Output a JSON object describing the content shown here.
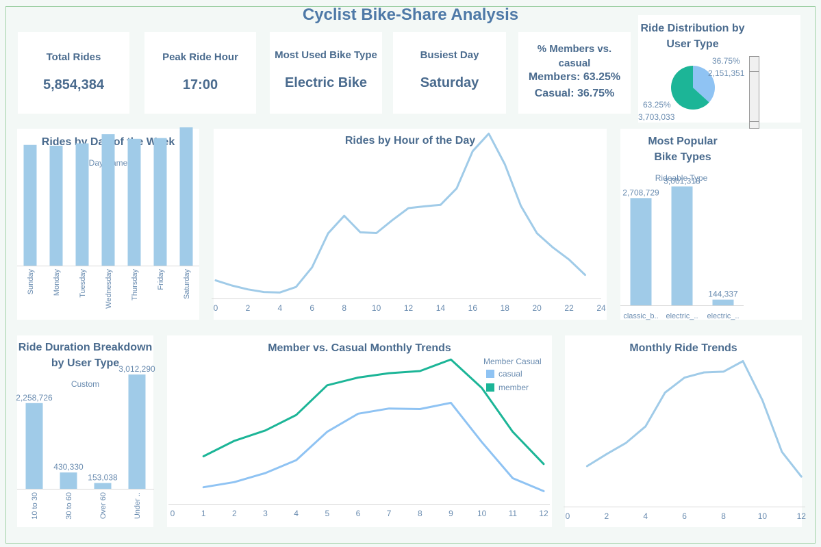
{
  "dashboard_title": "Cyclist Bike-Share Analysis",
  "kpis": [
    {
      "label": "Total Rides",
      "value": "5,854,384"
    },
    {
      "label": "Peak Ride Hour",
      "value": "17:00"
    },
    {
      "label": "Most Used Bike Type",
      "value": "Electric Bike"
    },
    {
      "label": "Busiest Day",
      "value": "Saturday"
    }
  ],
  "members_kpi": {
    "label": "% Members vs. casual",
    "members": "Members: 63.25%",
    "casual": "Casual: 36.75%"
  },
  "colors": {
    "bar": "#a0cbe8",
    "casual": "#8fc3f3",
    "member": "#1cb597",
    "line": "#a0cbe8"
  },
  "chart_data": [
    {
      "id": "pie",
      "type": "pie",
      "title": "Ride Distribution by User Type",
      "slices": [
        {
          "name": "casual",
          "value": 2151351,
          "percent_label": "36.75%",
          "value_label": "2,151,351"
        },
        {
          "name": "member",
          "value": 3703033,
          "percent_label": "63.25%",
          "value_label": "3,703,033"
        }
      ]
    },
    {
      "id": "dow",
      "type": "bar",
      "title": "Rides by Day of the Week",
      "xlabel": "Day Name",
      "categories": [
        "Sunday",
        "Monday",
        "Tuesday",
        "Wednesday",
        "Thursday",
        "Friday",
        "Saturday"
      ],
      "values": [
        790000,
        785000,
        800000,
        860000,
        830000,
        835000,
        905000
      ],
      "ylim": [
        0,
        950000
      ]
    },
    {
      "id": "hour",
      "type": "line",
      "title": "Rides by Hour of the Day",
      "x": [
        0,
        1,
        2,
        3,
        4,
        5,
        6,
        7,
        8,
        9,
        10,
        11,
        12,
        13,
        14,
        15,
        16,
        17,
        18,
        19,
        20,
        21,
        22,
        23
      ],
      "values": [
        70000,
        47000,
        29000,
        17000,
        15000,
        40000,
        130000,
        285000,
        365000,
        290000,
        286000,
        345000,
        400000,
        408000,
        415000,
        490000,
        660000,
        740000,
        600000,
        410000,
        285000,
        220000,
        165000,
        95000
      ],
      "xticks": [
        0,
        2,
        4,
        6,
        8,
        10,
        12,
        14,
        16,
        18,
        20,
        22,
        24
      ],
      "xlim": [
        0,
        24
      ],
      "ylim": [
        0,
        800000
      ]
    },
    {
      "id": "bike",
      "type": "bar",
      "title": "Most Popular Bike Types",
      "xlabel": "Rideable Type",
      "categories": [
        "classic_b..",
        "electric_..",
        "electric_.."
      ],
      "values": [
        2708729,
        3001318,
        144337
      ],
      "data_labels": [
        "2,708,729",
        "3,001,318",
        "144,337"
      ],
      "ylim": [
        0,
        3250000
      ]
    },
    {
      "id": "duration",
      "type": "bar",
      "title": "Ride Duration Breakdown by User Type",
      "xlabel": "Custom",
      "categories": [
        "10 to 30",
        "30 to 60",
        "Over 60",
        "Under .."
      ],
      "values": [
        2258726,
        430330,
        153038,
        3012290
      ],
      "data_labels": [
        "2,258,726",
        "430,330",
        "153,038",
        "3,012,290"
      ],
      "ylim": [
        0,
        3500000
      ]
    },
    {
      "id": "mvc",
      "type": "line",
      "title": "Member vs. Casual Monthly Trends",
      "legend_title": "Member Casual",
      "x": [
        1,
        2,
        3,
        4,
        5,
        6,
        7,
        8,
        9,
        10,
        11,
        12
      ],
      "series": [
        {
          "name": "casual",
          "values": [
            25000,
            45000,
            80000,
            130000,
            240000,
            310000,
            330000,
            328000,
            352000,
            200000,
            60000,
            10000
          ]
        },
        {
          "name": "member",
          "values": [
            145000,
            205000,
            245000,
            305000,
            420000,
            450000,
            467000,
            475000,
            520000,
            410000,
            240000,
            115000
          ]
        }
      ],
      "xticks": [
        0,
        1,
        2,
        3,
        4,
        5,
        6,
        7,
        8,
        9,
        10,
        11,
        12
      ],
      "xlim": [
        0,
        12.2
      ],
      "ylim": [
        -50000,
        560000
      ]
    },
    {
      "id": "monthly",
      "type": "line",
      "title": "Monthly Ride Trends",
      "x": [
        1,
        2,
        3,
        4,
        5,
        6,
        7,
        8,
        9,
        10,
        11,
        12
      ],
      "values": [
        170000,
        250000,
        325000,
        435000,
        660000,
        760000,
        795000,
        800000,
        870000,
        610000,
        265000,
        100000
      ],
      "xticks": [
        0,
        2,
        4,
        6,
        8,
        10,
        12
      ],
      "xlim": [
        0,
        12.2
      ],
      "ylim": [
        -100000,
        950000
      ]
    }
  ]
}
